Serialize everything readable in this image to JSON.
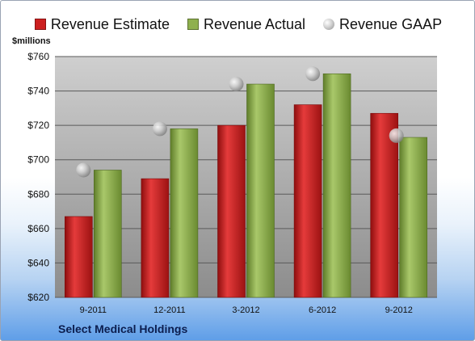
{
  "legend": {
    "estimate": "Revenue Estimate",
    "actual": "Revenue Actual",
    "gaap": "Revenue GAAP"
  },
  "y_unit": "$millions",
  "company": "Select Medical Holdings",
  "colors": {
    "estimate": "#cc1f1f",
    "actual": "#8fb04e",
    "gaap": "#bdbdbd",
    "plot_top": "#cfcfcf",
    "plot_bottom": "#8c8c8c"
  },
  "chart_data": {
    "type": "bar",
    "categories": [
      "9-2011",
      "12-2011",
      "3-2012",
      "6-2012",
      "9-2012"
    ],
    "series": [
      {
        "name": "Revenue Estimate",
        "values": [
          667,
          689,
          720,
          732,
          727
        ]
      },
      {
        "name": "Revenue Actual",
        "values": [
          694,
          718,
          744,
          750,
          713
        ]
      },
      {
        "name": "Revenue GAAP",
        "values": [
          694,
          718,
          744,
          750,
          714
        ],
        "style": "bubble"
      }
    ],
    "ylabel": "$millions",
    "ylim": [
      620,
      760
    ],
    "yticks": [
      "$620",
      "$640",
      "$660",
      "$680",
      "$700",
      "$720",
      "$740",
      "$760"
    ],
    "grid": true,
    "legend_position": "top"
  }
}
